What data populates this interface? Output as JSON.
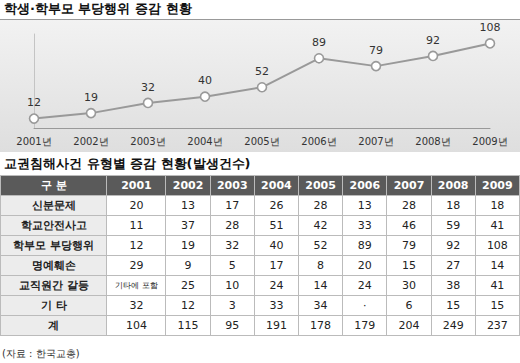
{
  "chart_data": {
    "type": "line",
    "title": "학생·학부모 부당행위 증감 현황",
    "categories": [
      "2001년",
      "2002년",
      "2003년",
      "2004년",
      "2005년",
      "2006년",
      "2007년",
      "2008년",
      "2009년"
    ],
    "values": [
      12,
      19,
      32,
      40,
      52,
      89,
      79,
      92,
      108
    ],
    "color": "#999999",
    "marker": "circle",
    "line_style": "solid",
    "data_labels": true,
    "tick_labels": "x",
    "grid": false,
    "ylim": [
      0,
      120
    ]
  },
  "table": {
    "title": "교권침해사건 유형별 증감 현황(발생건수)",
    "header": [
      "구 분",
      "2001",
      "2002",
      "2003",
      "2004",
      "2005",
      "2006",
      "2007",
      "2008",
      "2009"
    ],
    "rows": [
      [
        "신분문제",
        20,
        13,
        17,
        26,
        28,
        13,
        28,
        18,
        18
      ],
      [
        "학교안전사고",
        11,
        37,
        28,
        51,
        42,
        33,
        46,
        59,
        41
      ],
      [
        "학부모 부당행위",
        12,
        19,
        32,
        40,
        52,
        89,
        79,
        92,
        108
      ],
      [
        "명예훼손",
        29,
        9,
        5,
        17,
        8,
        20,
        15,
        27,
        14
      ],
      [
        "교직원간 갈등",
        "기타에 포함",
        25,
        10,
        24,
        14,
        24,
        30,
        38,
        41
      ],
      [
        "기 타",
        32,
        12,
        3,
        33,
        34,
        "·",
        6,
        15,
        15
      ],
      [
        "계",
        104,
        115,
        95,
        191,
        178,
        179,
        204,
        249,
        237
      ]
    ]
  },
  "source": "(자료 : 한국교총)"
}
